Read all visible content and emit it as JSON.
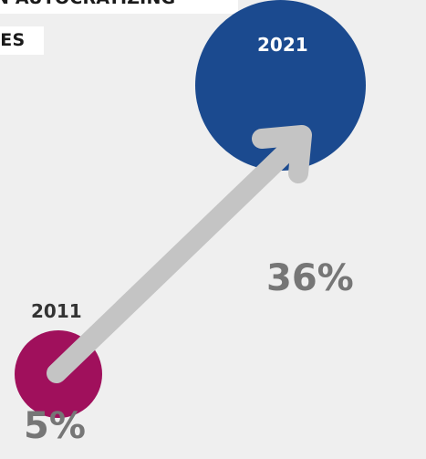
{
  "title": {
    "line1": "N AUTOCRATIZING",
    "line2": "IES"
  },
  "points": [
    {
      "year": "2011",
      "value": "5%"
    },
    {
      "year": "2021",
      "value": "36%"
    }
  ],
  "colors": {
    "background": "#efefef",
    "circle_2021": "#1b4a8f",
    "circle_2011": "#a0105c",
    "arrow": "#c4c4c4",
    "percent_text": "#767676"
  },
  "icons": {
    "arrow": "trend-arrow-icon"
  }
}
